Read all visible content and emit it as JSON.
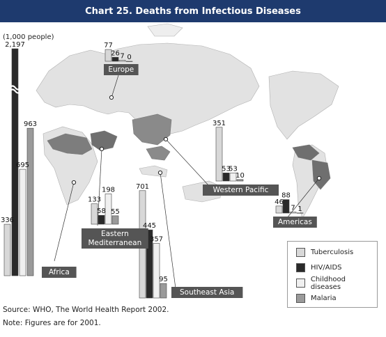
{
  "title": "Chart 25. Deaths from Infectious Diseases",
  "unit_label": "(1,000 people)",
  "source": "Source: WHO, The World Health Report 2002.",
  "note": "Note: Figures are for 2001.",
  "colors": {
    "title_bg": "#1e3a6e",
    "label_bg": "#555555",
    "tuberculosis": "#d8d8d8",
    "hiv_aids": "#2a2a2a",
    "childhood": "#f0f0f0",
    "malaria": "#9a9a9a"
  },
  "legend": [
    {
      "name": "Tuberculosis",
      "color": "#d8d8d8"
    },
    {
      "name": "HIV/AIDS",
      "color": "#2a2a2a"
    },
    {
      "name": "Childhood diseases",
      "color": "#f0f0f0"
    },
    {
      "name": "Malaria",
      "color": "#9a9a9a"
    }
  ],
  "chart_data": {
    "type": "bar",
    "title": "Chart 25. Deaths from Infectious Diseases",
    "ylabel": "(1,000 people)",
    "series_names": [
      "Tuberculosis",
      "HIV/AIDS",
      "Childhood diseases",
      "Malaria"
    ],
    "regions": [
      {
        "name": "Africa",
        "values": [
          336,
          2197,
          695,
          963
        ],
        "broken_axis": true
      },
      {
        "name": "Europe",
        "values": [
          77,
          26,
          7,
          0
        ]
      },
      {
        "name": "Eastern Mediterranean",
        "label_lines": [
          "Eastern",
          "Mediterranean"
        ],
        "values": [
          133,
          58,
          198,
          55
        ]
      },
      {
        "name": "Southeast Asia",
        "values": [
          701,
          445,
          357,
          95
        ]
      },
      {
        "name": "Western Pacific",
        "values": [
          351,
          53,
          53,
          10
        ]
      },
      {
        "name": "Americas",
        "values": [
          46,
          88,
          7,
          1
        ]
      }
    ]
  }
}
